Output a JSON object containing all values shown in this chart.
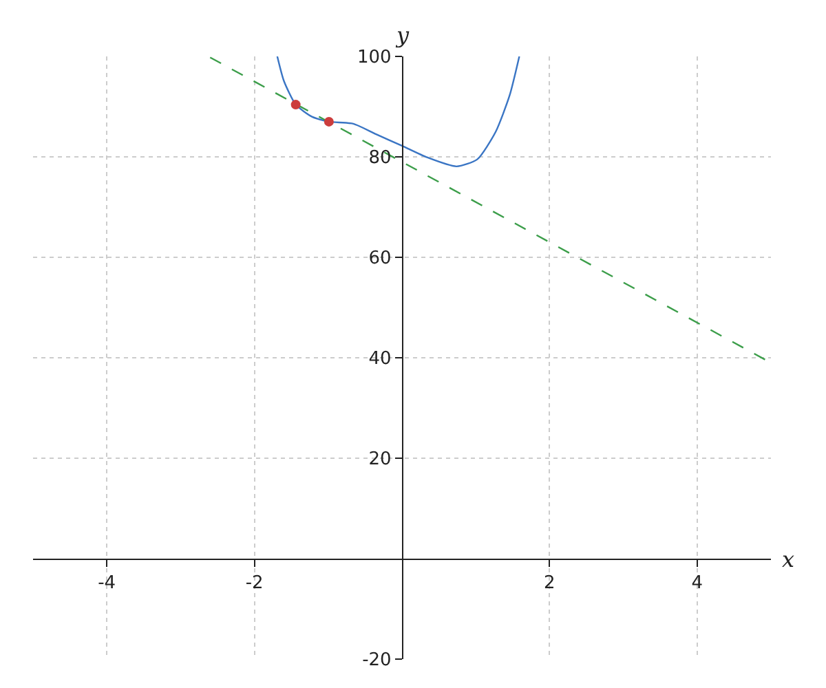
{
  "chart_data": {
    "type": "line",
    "xlabel": "x",
    "ylabel": "y",
    "xlim": [
      -5,
      5
    ],
    "ylim": [
      -20,
      100
    ],
    "xticks": [
      -4,
      -2,
      2,
      4
    ],
    "yticks": [
      -20,
      20,
      40,
      60,
      80,
      100
    ],
    "grid": true,
    "series": [
      {
        "color": "#3a75c4",
        "line_style": "solid",
        "marker": "none",
        "x": [
          -1.69,
          -1.6,
          -1.44,
          -1.22,
          -0.99,
          -0.66,
          -0.35,
          0,
          0.34,
          0.74,
          1.02,
          1.27,
          1.46,
          1.59
        ],
        "values": [
          100,
          95.1,
          90.4,
          88.0,
          87.0,
          86.6,
          84.5,
          82.2,
          79.9,
          78.1,
          79.5,
          85.0,
          92.3,
          100
        ]
      },
      {
        "color": "#3c9e4a",
        "line_style": "dashed",
        "marker": "none",
        "x": [
          -2.6,
          5
        ],
        "values": [
          99.8,
          39
        ]
      },
      {
        "type": "scatter",
        "color": "#cc3d3d",
        "marker": "circle",
        "x": [
          -1.44,
          -0.99
        ],
        "values": [
          90.4,
          87.0
        ]
      }
    ]
  }
}
